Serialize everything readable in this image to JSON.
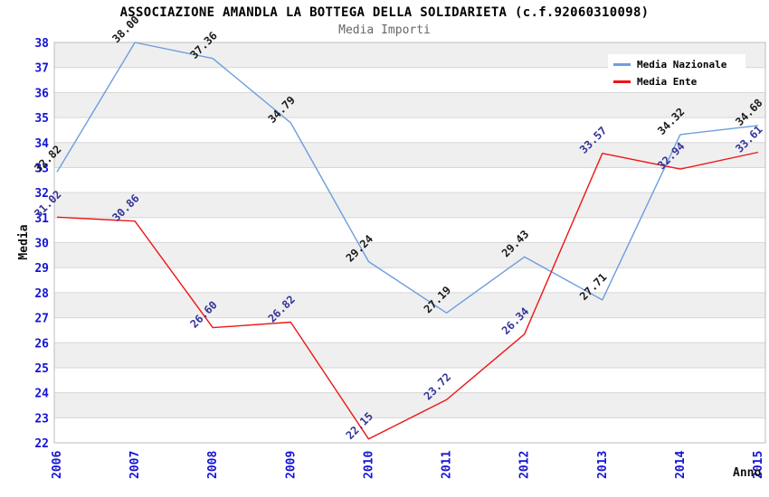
{
  "chart_data": {
    "type": "line",
    "title": "ASSOCIAZIONE AMANDLA LA BOTTEGA DELLA SOLIDARIETA (c.f.92060310098)",
    "subtitle": "Media Importi",
    "xlabel": "Anno",
    "ylabel": "Media",
    "categories": [
      "2006",
      "2007",
      "2008",
      "2009",
      "2010",
      "2011",
      "2012",
      "2013",
      "2014",
      "2015"
    ],
    "ylim": [
      22,
      38
    ],
    "ytick_step": 1,
    "grid": "horizontal",
    "background_bands": "alternating gray/white per unit",
    "legend_position": "top-right",
    "markers": "none",
    "value_label_format": "2 decimals, rotated 45deg",
    "series": [
      {
        "name": "Media Nazionale",
        "color": "#6c9ede",
        "label_color": "#1a1a1a",
        "values": [
          32.82,
          38.0,
          37.36,
          34.79,
          29.24,
          27.19,
          29.43,
          27.71,
          34.32,
          34.68
        ]
      },
      {
        "name": "Media Ente",
        "color": "#ed1515",
        "label_color": "#333399",
        "values": [
          31.02,
          30.86,
          26.6,
          26.82,
          22.15,
          23.72,
          26.34,
          33.57,
          32.94,
          33.61
        ]
      }
    ],
    "colors": {
      "tick": "#1414d6",
      "band": "#efefef",
      "grid": "#d6d6d6",
      "border": "#bcbcbc",
      "title": "#000000",
      "subtitle": "#666666",
      "background": "#ffffff"
    }
  }
}
